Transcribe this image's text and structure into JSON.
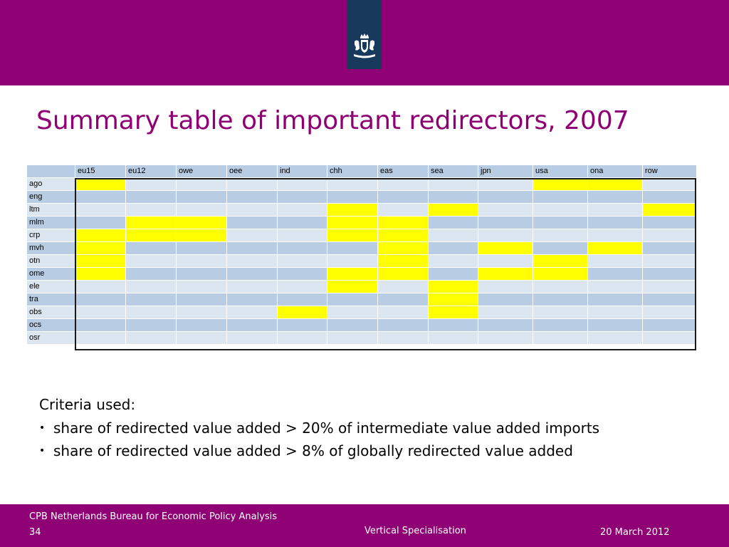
{
  "header": {
    "title": "Summary table of important redirectors, 2007",
    "emblem": "coat-of-arms-emblem",
    "colors": {
      "band": "#8f0074",
      "emblem_box": "#17395c"
    }
  },
  "table": {
    "columns": [
      "eu15",
      "eu12",
      "owe",
      "oee",
      "ind",
      "chh",
      "eas",
      "sea",
      "jpn",
      "usa",
      "ona",
      "row"
    ],
    "rows": [
      {
        "label": "ago",
        "highlighted": [
          "eu15",
          "usa",
          "ona"
        ]
      },
      {
        "label": "eng",
        "highlighted": []
      },
      {
        "label": "ltm",
        "highlighted": [
          "chh",
          "sea",
          "row"
        ]
      },
      {
        "label": "mlm",
        "highlighted": [
          "eu12",
          "owe",
          "chh",
          "eas"
        ]
      },
      {
        "label": "crp",
        "highlighted": [
          "eu15",
          "eu12",
          "owe",
          "chh",
          "eas"
        ]
      },
      {
        "label": "mvh",
        "highlighted": [
          "eu15",
          "eas",
          "jpn",
          "ona"
        ]
      },
      {
        "label": "otn",
        "highlighted": [
          "eu15",
          "eas",
          "usa"
        ]
      },
      {
        "label": "ome",
        "highlighted": [
          "eu15",
          "chh",
          "eas",
          "jpn",
          "usa"
        ]
      },
      {
        "label": "ele",
        "highlighted": [
          "chh",
          "sea"
        ]
      },
      {
        "label": "tra",
        "highlighted": [
          "sea"
        ]
      },
      {
        "label": "obs",
        "highlighted": [
          "ind",
          "sea"
        ]
      },
      {
        "label": "ocs",
        "highlighted": []
      },
      {
        "label": "osr",
        "highlighted": []
      }
    ],
    "colors": {
      "highlight": "#ffff00",
      "row_dark": "#b8cce4",
      "row_light": "#dce6f1"
    }
  },
  "criteria": {
    "title": "Criteria used:",
    "items": [
      "share of redirected value added > 20% of intermediate value added imports",
      "share of redirected value added > 8% of globally redirected value added"
    ],
    "bullet": "•"
  },
  "footer": {
    "org": "CPB Netherlands Bureau for Economic Policy Analysis",
    "page": "34",
    "topic": "Vertical Specialisation",
    "date": "20 March 2012"
  }
}
